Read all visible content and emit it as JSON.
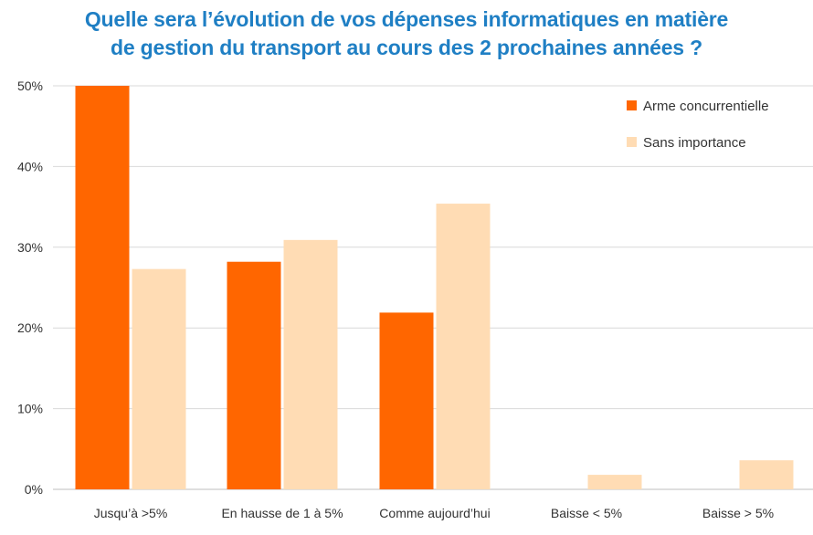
{
  "chart_data": {
    "type": "bar",
    "title_lines": [
      "Quelle sera l’évolution de vos dépenses informatiques en matière",
      "de gestion du transport au cours des 2 prochaines années ?"
    ],
    "xlabel": "",
    "ylabel": "",
    "categories": [
      "Jusqu’à >5%",
      "En hausse de 1 à 5%",
      "Comme aujourd’hui",
      "Baisse < 5%",
      "Baisse > 5%"
    ],
    "series": [
      {
        "name": "Arme concurrentielle",
        "color": "#ff6600",
        "values": [
          50,
          28.2,
          21.9,
          0,
          0
        ]
      },
      {
        "name": "Sans importance",
        "color": "#ffdcb4",
        "values": [
          27.3,
          30.9,
          35.4,
          1.8,
          3.6
        ]
      }
    ],
    "yticks": [
      "0%",
      "10%",
      "20%",
      "30%",
      "40%",
      "50%"
    ],
    "ylim": [
      0,
      50
    ],
    "grid": true,
    "legend_position": "top-right",
    "colors": {
      "title": "#1f7fc4",
      "gridline": "#d9d9d9",
      "axis_text": "#333333"
    }
  }
}
